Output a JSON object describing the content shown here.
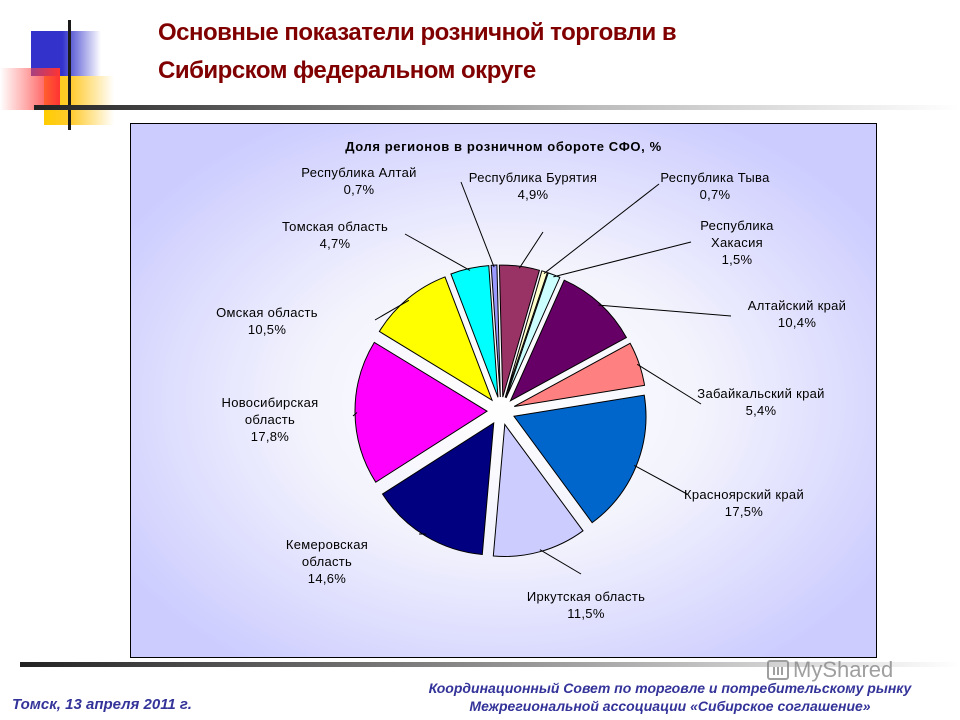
{
  "slide": {
    "title_line1": "Основные показатели розничной торговли в",
    "title_line2": "Сибирском федеральном округе",
    "footer_left": "Томск, 13 апреля 2011 г.",
    "footer_right_line1": "Координационный Совет по торговле и потребительскому рынку",
    "footer_right_line2": "Межрегиональной ассоциации «Сибирское соглашение»",
    "watermark": "MyShared"
  },
  "chart_data": {
    "type": "pie",
    "title": "Доля регионов в розничном обороте СФО, %",
    "exploded": true,
    "categories": [
      "Республика Алтай",
      "Республика Бурятия",
      "Республика Тыва",
      "Республика Хакасия",
      "Алтайский край",
      "Забайкальский край",
      "Красноярский край",
      "Иркутская область",
      "Кемеровская область",
      "Новосибирская область",
      "Омская область",
      "Томская область"
    ],
    "values": [
      0.7,
      4.9,
      0.7,
      1.5,
      10.4,
      5.4,
      17.5,
      11.5,
      14.6,
      17.8,
      10.5,
      4.7
    ],
    "value_labels": [
      "0,7%",
      "4,9%",
      "0,7%",
      "1,5%",
      "10,4%",
      "5,4%",
      "17,5%",
      "11,5%",
      "14,6%",
      "17,8%",
      "10,5%",
      "4,7%"
    ],
    "colors": [
      "#9999ff",
      "#993366",
      "#ffffcc",
      "#ccffff",
      "#660066",
      "#ff8080",
      "#0066cc",
      "#ccccff",
      "#000080",
      "#ff00ff",
      "#ffff00",
      "#00ffff"
    ],
    "legend": "none (data labels with leader lines)"
  }
}
